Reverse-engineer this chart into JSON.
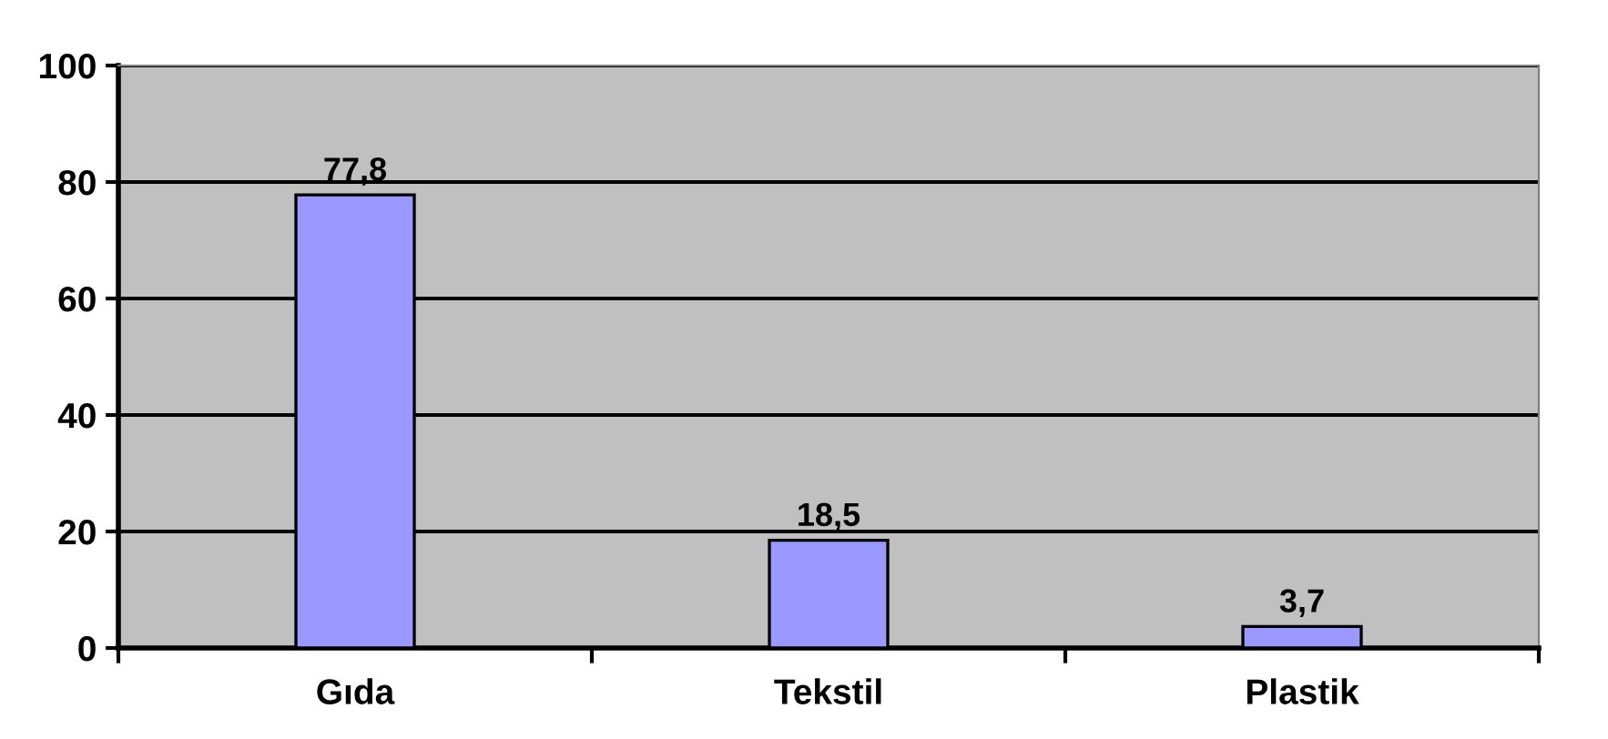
{
  "chart_data": {
    "type": "bar",
    "categories": [
      "Gıda",
      "Tekstil",
      "Plastik"
    ],
    "values": [
      77.8,
      18.5,
      3.7
    ],
    "color": "#9999ff",
    "value_labels": [
      "77,8",
      "18,5",
      "3,7"
    ],
    "ylim": [
      0,
      100
    ],
    "yticks": [
      0,
      20,
      40,
      60,
      80,
      100
    ],
    "grid": "y"
  }
}
